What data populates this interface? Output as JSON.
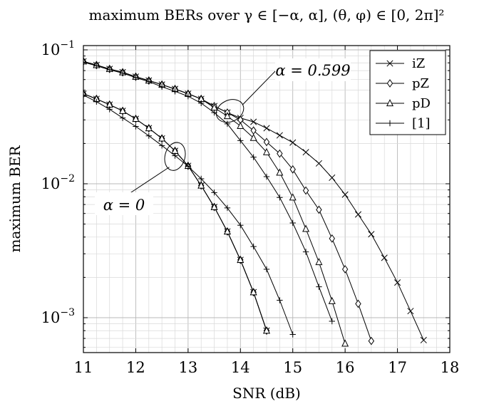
{
  "chart_data": {
    "type": "line",
    "title": "maximum BERs over γ ∈ [−α, α], (θ, φ) ∈ [0, 2π]²",
    "xlabel": "SNR (dB)",
    "ylabel": "maximum BER",
    "xlim": [
      11,
      18
    ],
    "ylim": [
      0.0006,
      0.1
    ],
    "yscale": "log",
    "grid": true,
    "legend_position": "top-right",
    "x_ticks": [
      "11",
      "12",
      "13",
      "14",
      "15",
      "16",
      "17",
      "18"
    ],
    "y_ticks": [
      {
        "value": 0.1,
        "base": "10",
        "exp": "−1"
      },
      {
        "value": 0.01,
        "base": "10",
        "exp": "−2"
      },
      {
        "value": 0.001,
        "base": "10",
        "exp": "−3"
      }
    ],
    "annotations": [
      {
        "text": "α = 0.599",
        "x": 13.8,
        "y": 0.035
      },
      {
        "text": "α = 0",
        "x": 12.75,
        "y": 0.016
      }
    ],
    "series": [
      {
        "name": "iZ",
        "marker": "x",
        "group": "α = 0.599",
        "x": [
          11,
          11.25,
          11.5,
          11.75,
          12,
          12.25,
          12.5,
          12.75,
          13,
          13.25,
          13.5,
          13.75,
          14,
          14.25,
          14.5,
          14.75,
          15,
          15.25,
          15.5,
          15.75,
          16,
          16.25,
          16.5,
          16.75,
          17,
          17.25,
          17.5
        ],
        "y": [
          0.082,
          0.077,
          0.072,
          0.068,
          0.063,
          0.059,
          0.055,
          0.051,
          0.047,
          0.043,
          0.038,
          0.034,
          0.031,
          0.029,
          0.026,
          0.023,
          0.0203,
          0.0172,
          0.0142,
          0.0111,
          0.0083,
          0.0059,
          0.0042,
          0.0028,
          0.00183,
          0.00112,
          0.00068
        ]
      },
      {
        "name": "pZ",
        "marker": "diamond",
        "group": "α = 0.599",
        "x": [
          11,
          11.25,
          11.5,
          11.75,
          12,
          12.25,
          12.5,
          12.75,
          13,
          13.25,
          13.5,
          13.75,
          14,
          14.25,
          14.5,
          14.75,
          15,
          15.25,
          15.5,
          15.75,
          16,
          16.25,
          16.5
        ],
        "y": [
          0.082,
          0.077,
          0.072,
          0.068,
          0.063,
          0.059,
          0.055,
          0.051,
          0.047,
          0.043,
          0.038,
          0.034,
          0.03,
          0.025,
          0.0205,
          0.0168,
          0.0128,
          0.0089,
          0.0064,
          0.0039,
          0.0023,
          0.00127,
          0.00067
        ]
      },
      {
        "name": "pD",
        "marker": "triangle",
        "group": "α = 0.599",
        "x": [
          11,
          11.25,
          11.5,
          11.75,
          12,
          12.25,
          12.5,
          12.75,
          13,
          13.25,
          13.5,
          13.75,
          14,
          14.25,
          14.5,
          14.75,
          15,
          15.25,
          15.5,
          15.75,
          16
        ],
        "y": [
          0.082,
          0.077,
          0.072,
          0.068,
          0.063,
          0.059,
          0.055,
          0.051,
          0.047,
          0.043,
          0.037,
          0.032,
          0.027,
          0.022,
          0.0172,
          0.0121,
          0.0079,
          0.0046,
          0.0026,
          0.00133,
          0.00064
        ]
      },
      {
        "name": "[1]",
        "marker": "plus",
        "group": "α = 0.599",
        "x": [
          11,
          11.25,
          11.5,
          11.75,
          12,
          12.25,
          12.5,
          12.75,
          13,
          13.25,
          13.5,
          13.75,
          14,
          14.25,
          14.5,
          14.75,
          15,
          15.25,
          15.5,
          15.75
        ],
        "y": [
          0.081,
          0.076,
          0.071,
          0.067,
          0.062,
          0.058,
          0.053,
          0.049,
          0.045,
          0.04,
          0.034,
          0.028,
          0.021,
          0.0158,
          0.0113,
          0.0079,
          0.0051,
          0.0031,
          0.0017,
          0.00094
        ]
      },
      {
        "name": "iZ",
        "marker": "x",
        "group": "α = 0",
        "legend": false,
        "x": [
          11,
          11.25,
          11.5,
          11.75,
          12,
          12.25,
          12.5,
          12.75,
          13,
          13.25,
          13.5,
          13.75,
          14,
          14.25,
          14.5
        ],
        "y": [
          0.047,
          0.043,
          0.039,
          0.035,
          0.0305,
          0.026,
          0.0218,
          0.0176,
          0.0136,
          0.0097,
          0.0067,
          0.0044,
          0.0027,
          0.00155,
          0.0008
        ]
      },
      {
        "name": "pZ",
        "marker": "diamond",
        "group": "α = 0",
        "legend": false,
        "x": [
          11,
          11.25,
          11.5,
          11.75,
          12,
          12.25,
          12.5,
          12.75,
          13,
          13.25,
          13.5,
          13.75,
          14,
          14.25,
          14.5
        ],
        "y": [
          0.047,
          0.043,
          0.039,
          0.035,
          0.0305,
          0.026,
          0.0218,
          0.0176,
          0.0136,
          0.0097,
          0.0067,
          0.0044,
          0.0027,
          0.00155,
          0.0008
        ]
      },
      {
        "name": "pD",
        "marker": "triangle",
        "group": "α = 0",
        "legend": false,
        "x": [
          11,
          11.25,
          11.5,
          11.75,
          12,
          12.25,
          12.5,
          12.75,
          13,
          13.25,
          13.5,
          13.75,
          14,
          14.25,
          14.5
        ],
        "y": [
          0.047,
          0.043,
          0.039,
          0.035,
          0.0305,
          0.026,
          0.0218,
          0.0176,
          0.0136,
          0.0097,
          0.0067,
          0.0044,
          0.0027,
          0.00155,
          0.0008
        ]
      },
      {
        "name": "[1]",
        "marker": "plus",
        "group": "α = 0",
        "legend": false,
        "x": [
          11,
          11.25,
          11.5,
          11.75,
          12,
          12.25,
          12.5,
          12.75,
          13,
          13.25,
          13.5,
          13.75,
          14,
          14.25,
          14.5,
          14.75,
          15
        ],
        "y": [
          0.046,
          0.041,
          0.036,
          0.031,
          0.0268,
          0.0228,
          0.0193,
          0.0162,
          0.0135,
          0.0109,
          0.0086,
          0.0066,
          0.0049,
          0.0034,
          0.0023,
          0.00135,
          0.00075
        ]
      }
    ]
  }
}
